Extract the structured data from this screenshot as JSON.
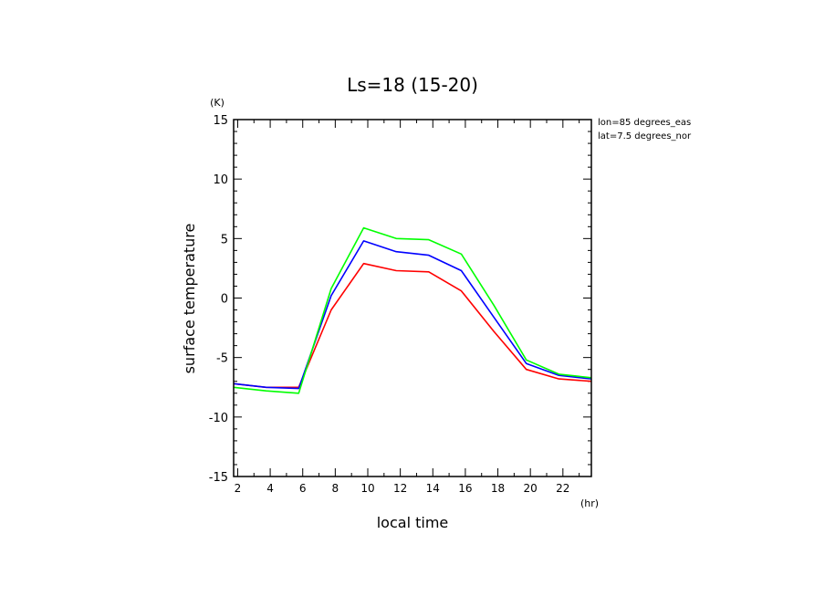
{
  "chart_data": {
    "type": "line",
    "title": "Ls=18 (15-20)",
    "xlabel": "local time",
    "ylabel": "surface temperature",
    "x_unit": "(hr)",
    "y_unit": "(K)",
    "annotations": [
      "lon=85 degrees_eas",
      "lat=7.5 degrees_nor"
    ],
    "xlim": [
      1.75,
      23.75
    ],
    "ylim": [
      -15,
      15
    ],
    "x_ticks": [
      2,
      4,
      6,
      8,
      10,
      12,
      14,
      16,
      18,
      20,
      22
    ],
    "y_ticks": [
      -15,
      -10,
      -5,
      0,
      5,
      10,
      15
    ],
    "grid": false,
    "x": [
      1.75,
      3.75,
      5.75,
      7.75,
      9.75,
      11.75,
      13.75,
      15.75,
      17.75,
      19.75,
      21.75,
      23.75
    ],
    "series": [
      {
        "color": "#ff0000",
        "values": [
          -7.2,
          -7.5,
          -7.5,
          -1.0,
          2.9,
          2.3,
          2.2,
          0.6,
          -2.8,
          -6.0,
          -6.8,
          -7.0
        ]
      },
      {
        "color": "#0000ff",
        "values": [
          -7.2,
          -7.5,
          -7.6,
          0.2,
          4.8,
          3.9,
          3.6,
          2.3,
          -1.6,
          -5.5,
          -6.5,
          -6.8
        ]
      },
      {
        "color": "#00ff00",
        "values": [
          -7.5,
          -7.8,
          -8.0,
          0.8,
          5.9,
          5.0,
          4.9,
          3.7,
          -0.6,
          -5.2,
          -6.4,
          -6.7
        ]
      }
    ]
  }
}
